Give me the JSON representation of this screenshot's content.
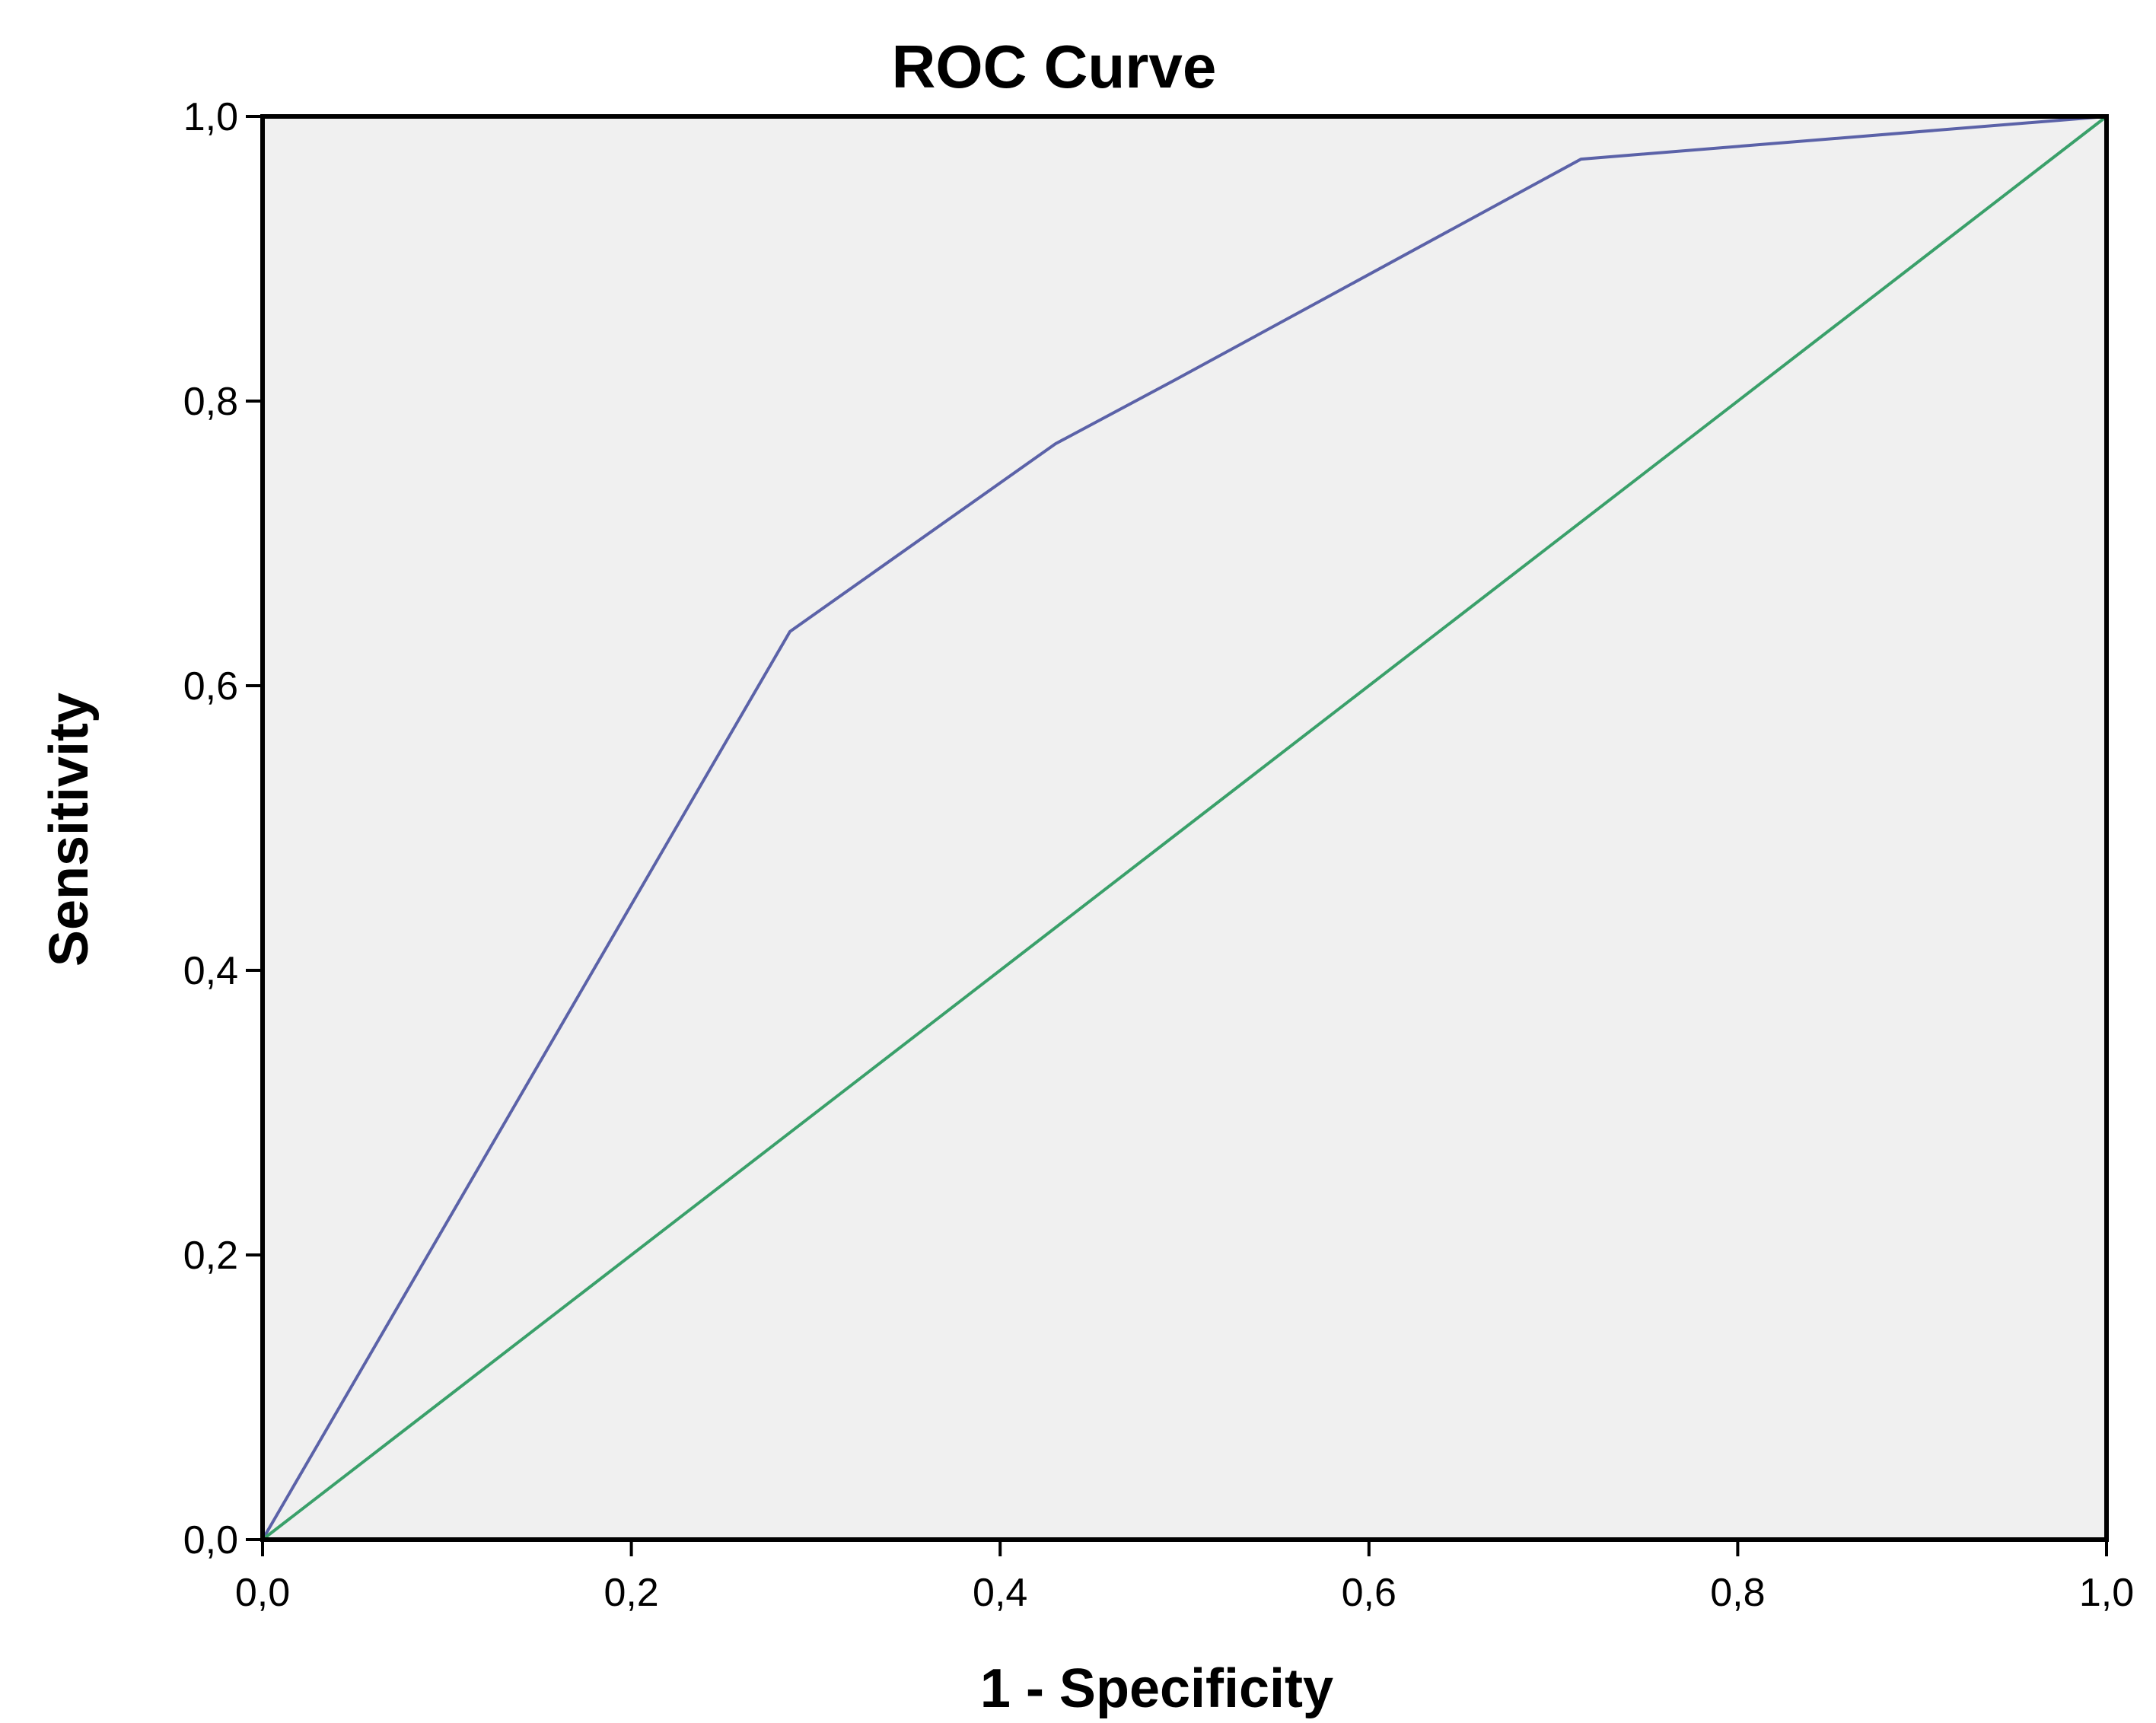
{
  "chart_data": {
    "type": "line",
    "title": "ROC Curve",
    "xlabel": "1 - Specificity",
    "ylabel": "Sensitivity",
    "xlim": [
      0,
      1
    ],
    "ylim": [
      0,
      1
    ],
    "x_ticks": [
      "0,0",
      "0,2",
      "0,4",
      "0,6",
      "0,8",
      "1,0"
    ],
    "y_ticks": [
      "0,0",
      "0,2",
      "0,4",
      "0,6",
      "0,8",
      "1,0"
    ],
    "grid": false,
    "plot_background": "#f0f0f0",
    "series": [
      {
        "color": "#5b62a8",
        "points": [
          {
            "x": 0.0,
            "y": 0.0
          },
          {
            "x": 0.286,
            "y": 0.638
          },
          {
            "x": 0.43,
            "y": 0.77
          },
          {
            "x": 0.495,
            "y": 0.815
          },
          {
            "x": 0.715,
            "y": 0.97
          },
          {
            "x": 1.0,
            "y": 1.0
          }
        ]
      },
      {
        "color": "#3aa06a",
        "points": [
          {
            "x": 0.0,
            "y": 0.0
          },
          {
            "x": 1.0,
            "y": 1.0
          }
        ]
      }
    ]
  }
}
